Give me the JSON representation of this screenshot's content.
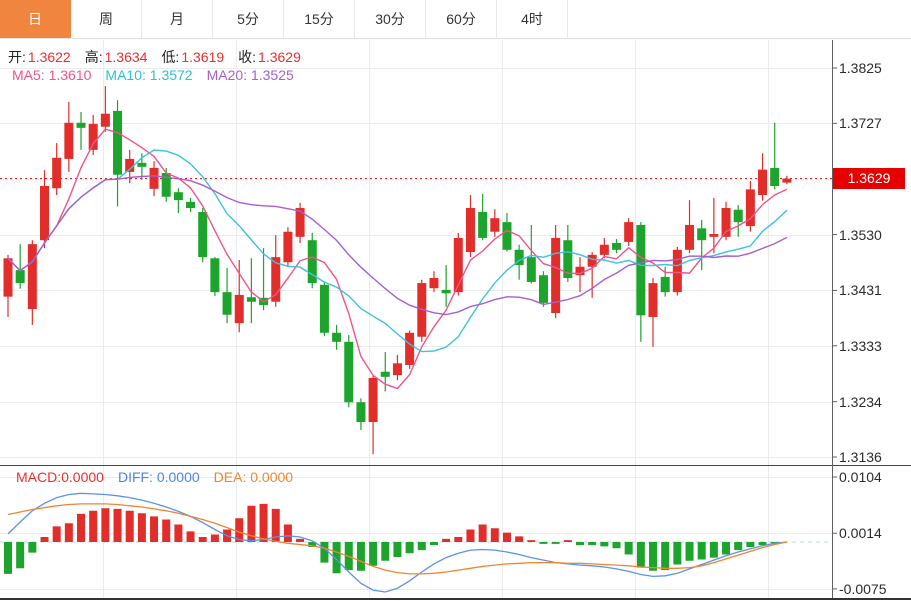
{
  "tabs": {
    "items": [
      {
        "label": "日",
        "name": "tab-day",
        "active": true
      },
      {
        "label": "周",
        "name": "tab-week",
        "active": false
      },
      {
        "label": "月",
        "name": "tab-month",
        "active": false
      },
      {
        "label": "5分",
        "name": "tab-5min",
        "active": false
      },
      {
        "label": "15分",
        "name": "tab-15min",
        "active": false
      },
      {
        "label": "30分",
        "name": "tab-30min",
        "active": false
      },
      {
        "label": "60分",
        "name": "tab-60min",
        "active": false
      },
      {
        "label": "4时",
        "name": "tab-4hour",
        "active": false
      }
    ]
  },
  "main": {
    "ohlc": {
      "open_label": "开:",
      "open": "1.3622",
      "high_label": "高:",
      "high": "1.3634",
      "low_label": "低:",
      "low": "1.3619",
      "close_label": "收:",
      "close": "1.3629"
    },
    "ma": {
      "ma5_label": "MA5:",
      "ma5": "1.3610",
      "ma10_label": "MA10:",
      "ma10": "1.3572",
      "ma20_label": "MA20:",
      "ma20": "1.3525"
    }
  },
  "macd_row": {
    "macd_label": "MACD:",
    "macd": "0.0000",
    "diff_label": "DIFF:",
    "diff": "0.0000",
    "dea_label": "DEA:",
    "dea": "0.0000"
  },
  "colors": {
    "up": "#e12e2b",
    "down": "#1ca42c",
    "ma5": "#f0548c",
    "ma10": "#3cc3d8",
    "ma20": "#a75fd0",
    "diff": "#5c93e8",
    "dea": "#ef8532",
    "badge": "#e60000",
    "dotted_price_line": "#e60000",
    "zero_dashed_line": "#aedcef",
    "grid": "#ececec",
    "axis": "#606060",
    "tab_active": "#f08540"
  },
  "chart_data": {
    "type": "candlestick",
    "title": "",
    "legend": [
      "MA5",
      "MA10",
      "MA20",
      "MACD",
      "DIFF",
      "DEA"
    ],
    "grid": true,
    "price_axis_labels": [
      "1.3825",
      "1.3727",
      "1.3629",
      "1.3530",
      "1.3431",
      "1.3333",
      "1.3234",
      "1.3136"
    ],
    "price_axis_values": [
      1.3825,
      1.3727,
      1.3629,
      1.353,
      1.3431,
      1.3333,
      1.3234,
      1.3136
    ],
    "current_price": "1.3629",
    "current_price_value": 1.3629,
    "macd_axis_labels": [
      "0.0104",
      "0.0014",
      "-0.0075"
    ],
    "macd_axis_values": [
      0.0104,
      0.0014,
      -0.0075
    ],
    "ma_periods": [
      5,
      10,
      20
    ],
    "candles_format": [
      "open",
      "high",
      "low",
      "close"
    ],
    "candles": [
      [
        1.342,
        1.3494,
        1.3384,
        1.3488
      ],
      [
        1.3467,
        1.3513,
        1.3434,
        1.3444
      ],
      [
        1.3398,
        1.352,
        1.337,
        1.3513
      ],
      [
        1.352,
        1.3644,
        1.3506,
        1.3616
      ],
      [
        1.3612,
        1.3692,
        1.36,
        1.3666
      ],
      [
        1.3664,
        1.3765,
        1.3641,
        1.3728
      ],
      [
        1.3728,
        1.3747,
        1.368,
        1.3719
      ],
      [
        1.368,
        1.3742,
        1.3671,
        1.3726
      ],
      [
        1.3721,
        1.3793,
        1.3712,
        1.3744
      ],
      [
        1.3749,
        1.3768,
        1.358,
        1.3636
      ],
      [
        1.3641,
        1.368,
        1.3621,
        1.3664
      ],
      [
        1.3657,
        1.3674,
        1.3627,
        1.365
      ],
      [
        1.3611,
        1.366,
        1.3598,
        1.3648
      ],
      [
        1.3639,
        1.3648,
        1.3588,
        1.3597
      ],
      [
        1.3605,
        1.3612,
        1.3568,
        1.3591
      ],
      [
        1.3588,
        1.3595,
        1.357,
        1.3577
      ],
      [
        1.357,
        1.3577,
        1.3481,
        1.349
      ],
      [
        1.3488,
        1.349,
        1.3421,
        1.3428
      ],
      [
        1.3428,
        1.3471,
        1.3373,
        1.3388
      ],
      [
        1.3373,
        1.3485,
        1.3357,
        1.3423
      ],
      [
        1.3419,
        1.3488,
        1.3373,
        1.3411
      ],
      [
        1.3418,
        1.3506,
        1.3396,
        1.3405
      ],
      [
        1.3411,
        1.3529,
        1.3402,
        1.349
      ],
      [
        1.3481,
        1.3543,
        1.3473,
        1.3535
      ],
      [
        1.3526,
        1.3586,
        1.3515,
        1.3577
      ],
      [
        1.352,
        1.3533,
        1.3435,
        1.3444
      ],
      [
        1.3441,
        1.3447,
        1.335,
        1.3356
      ],
      [
        1.3356,
        1.337,
        1.3326,
        1.334
      ],
      [
        1.334,
        1.3352,
        1.3224,
        1.3233
      ],
      [
        1.3233,
        1.324,
        1.3184,
        1.3198
      ],
      [
        1.3198,
        1.328,
        1.3141,
        1.3276
      ],
      [
        1.3287,
        1.3322,
        1.3252,
        1.3278
      ],
      [
        1.3281,
        1.3317,
        1.3272,
        1.3302
      ],
      [
        1.3299,
        1.336,
        1.3292,
        1.3356
      ],
      [
        1.3349,
        1.345,
        1.334,
        1.3444
      ],
      [
        1.3435,
        1.3465,
        1.3428,
        1.3453
      ],
      [
        1.3432,
        1.3476,
        1.3402,
        1.3426
      ],
      [
        1.3428,
        1.3533,
        1.3422,
        1.3524
      ],
      [
        1.3499,
        1.36,
        1.349,
        1.3577
      ],
      [
        1.357,
        1.3602,
        1.352,
        1.3524
      ],
      [
        1.3535,
        1.3575,
        1.3526,
        1.3559
      ],
      [
        1.3552,
        1.3568,
        1.35,
        1.3503
      ],
      [
        1.3503,
        1.3512,
        1.345,
        1.3476
      ],
      [
        1.349,
        1.3547,
        1.3443,
        1.3446
      ],
      [
        1.3458,
        1.3465,
        1.3402,
        1.3409
      ],
      [
        1.3391,
        1.3547,
        1.3382,
        1.3524
      ],
      [
        1.352,
        1.3547,
        1.3446,
        1.3453
      ],
      [
        1.3458,
        1.349,
        1.3428,
        1.3473
      ],
      [
        1.3473,
        1.3499,
        1.3418,
        1.3494
      ],
      [
        1.3494,
        1.3524,
        1.3488,
        1.3512
      ],
      [
        1.3515,
        1.3522,
        1.3497,
        1.3503
      ],
      [
        1.3517,
        1.3559,
        1.351,
        1.3552
      ],
      [
        1.3547,
        1.3552,
        1.334,
        1.3387
      ],
      [
        1.3384,
        1.3453,
        1.3331,
        1.3444
      ],
      [
        1.3455,
        1.3473,
        1.342,
        1.3428
      ],
      [
        1.3428,
        1.3508,
        1.3422,
        1.3503
      ],
      [
        1.3503,
        1.3591,
        1.3497,
        1.3547
      ],
      [
        1.3541,
        1.3556,
        1.3467,
        1.352
      ],
      [
        1.3526,
        1.3595,
        1.3497,
        1.3531
      ],
      [
        1.3526,
        1.3588,
        1.352,
        1.3577
      ],
      [
        1.3574,
        1.3582,
        1.3526,
        1.3552
      ],
      [
        1.3545,
        1.3625,
        1.3535,
        1.361
      ],
      [
        1.36,
        1.3674,
        1.359,
        1.3645
      ],
      [
        1.3648,
        1.3728,
        1.361,
        1.3616
      ],
      [
        1.3622,
        1.3634,
        1.3619,
        1.3629
      ]
    ],
    "macd": {
      "hist": [
        -0.0051,
        -0.0042,
        -0.0017,
        0.0008,
        0.0025,
        0.003,
        0.0045,
        0.005,
        0.0054,
        0.0053,
        0.005,
        0.0046,
        0.0041,
        0.0036,
        0.0028,
        0.0017,
        0.0008,
        0.0012,
        0.002,
        0.0038,
        0.0058,
        0.0061,
        0.0053,
        0.0028,
        0.0005,
        -0.0008,
        -0.0033,
        -0.005,
        -0.0045,
        -0.0046,
        -0.0038,
        -0.003,
        -0.0024,
        -0.0018,
        -0.0013,
        -0.0005,
        0.0005,
        0.0008,
        0.002,
        0.0028,
        0.0022,
        0.0015,
        0.0009,
        0.0003,
        -0.0003,
        -0.0003,
        0.0003,
        -0.0005,
        -0.0005,
        -0.0007,
        -0.001,
        -0.002,
        -0.0041,
        -0.0046,
        -0.0045,
        -0.0036,
        -0.003,
        -0.0028,
        -0.0025,
        -0.002,
        -0.0013,
        -0.0008,
        -0.0005,
        -0.0002,
        0.0
      ],
      "diff": [
        0.0013,
        0.0032,
        0.005,
        0.0062,
        0.0071,
        0.0076,
        0.0078,
        0.0077,
        0.0076,
        0.0074,
        0.0071,
        0.0067,
        0.0062,
        0.0056,
        0.0049,
        0.0041,
        0.0031,
        0.002,
        0.001,
        0.0004,
        0.0002,
        0.0004,
        0.0008,
        0.001,
        0.0008,
        0.0002,
        -0.001,
        -0.0028,
        -0.0048,
        -0.0066,
        -0.0077,
        -0.008,
        -0.0074,
        -0.0062,
        -0.0048,
        -0.0035,
        -0.0025,
        -0.0018,
        -0.0013,
        -0.0012,
        -0.0013,
        -0.0016,
        -0.002,
        -0.0025,
        -0.0029,
        -0.0033,
        -0.0035,
        -0.0037,
        -0.0038,
        -0.004,
        -0.0043,
        -0.0047,
        -0.0052,
        -0.0055,
        -0.0054,
        -0.005,
        -0.0043,
        -0.0036,
        -0.0029,
        -0.0022,
        -0.0016,
        -0.0011,
        -0.0006,
        -0.0002,
        0.0
      ],
      "dea": [
        0.0044,
        0.0048,
        0.0052,
        0.0055,
        0.0058,
        0.006,
        0.0061,
        0.0061,
        0.0061,
        0.006,
        0.0058,
        0.0056,
        0.0053,
        0.005,
        0.0046,
        0.0041,
        0.0036,
        0.003,
        0.0023,
        0.0016,
        0.001,
        0.0005,
        0.0001,
        -0.0002,
        -0.0004,
        -0.0006,
        -0.001,
        -0.0016,
        -0.0023,
        -0.0031,
        -0.0039,
        -0.0045,
        -0.0049,
        -0.0051,
        -0.0051,
        -0.005,
        -0.0048,
        -0.0045,
        -0.0042,
        -0.0039,
        -0.0037,
        -0.0035,
        -0.0034,
        -0.0033,
        -0.0033,
        -0.0033,
        -0.0034,
        -0.0034,
        -0.0035,
        -0.0036,
        -0.0037,
        -0.0038,
        -0.004,
        -0.0041,
        -0.0042,
        -0.0042,
        -0.0041,
        -0.0038,
        -0.0033,
        -0.0027,
        -0.0021,
        -0.0015,
        -0.0009,
        -0.0004,
        0.0
      ]
    }
  }
}
